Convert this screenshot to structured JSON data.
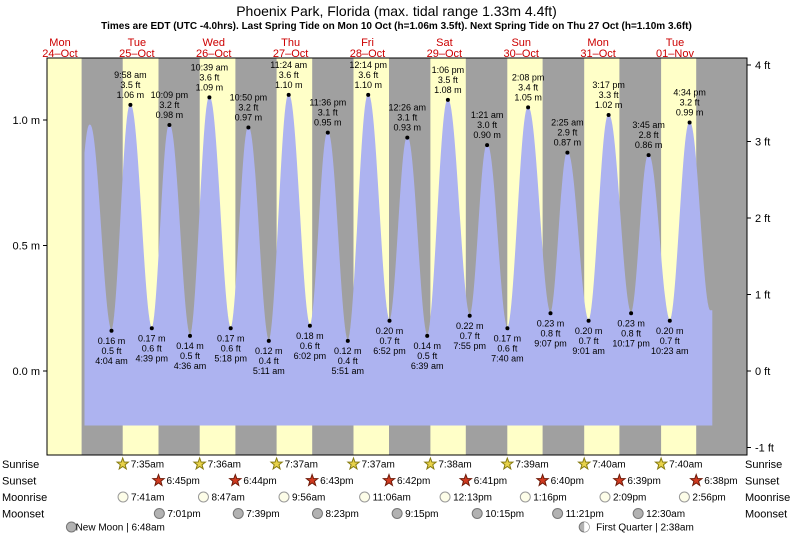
{
  "title": "Phoenix Park, Florida (max. tidal range 1.33m 4.4ft)",
  "subtitle": "Times are EDT (UTC -4.0hrs). Last Spring Tide on Mon 10 Oct (h=1.06m 3.5ft). Next Spring Tide on Thu 27 Oct (h=1.10m 3.6ft)",
  "colors": {
    "day_band": "#ffffc8",
    "night_band": "#a0a0a0",
    "tide_fill": "#adb3f0",
    "day_label": "#cc0000",
    "sunrise_star_fill": "#e8d24a",
    "sunrise_star_stroke": "#857a10",
    "sunset_star_fill": "#d03a20",
    "sunset_star_stroke": "#6e1a08",
    "moonrise_fill": "#fdfde8",
    "moonrise_stroke": "#999999",
    "moonset_fill": "#b2b2b2",
    "moonset_stroke": "#777777",
    "plot_border": "#000000"
  },
  "days": [
    {
      "name": "Mon",
      "date": "24–Oct"
    },
    {
      "name": "Tue",
      "date": "25–Oct"
    },
    {
      "name": "Wed",
      "date": "26–Oct"
    },
    {
      "name": "Thu",
      "date": "27–Oct"
    },
    {
      "name": "Fri",
      "date": "28–Oct"
    },
    {
      "name": "Sat",
      "date": "29–Oct"
    },
    {
      "name": "Sun",
      "date": "30–Oct"
    },
    {
      "name": "Mon",
      "date": "31–Oct"
    },
    {
      "name": "Tue",
      "date": "01–Nov"
    }
  ],
  "y_axis": {
    "left": [
      {
        "label": "1.0 m",
        "m": 1.0
      },
      {
        "label": "0.5 m",
        "m": 0.5
      },
      {
        "label": "0.0 m",
        "m": 0.0
      }
    ],
    "right": [
      {
        "label": "4 ft",
        "ft": 4
      },
      {
        "label": "3 ft",
        "ft": 3
      },
      {
        "label": "2 ft",
        "ft": 2
      },
      {
        "label": "1 ft",
        "ft": 1
      },
      {
        "label": "0 ft",
        "ft": 0
      },
      {
        "label": "-1 ft",
        "ft": -1
      }
    ]
  },
  "chart_data": {
    "type": "area",
    "title": "Tide height curve for Phoenix Park, Florida",
    "ylabel_left_unit": "m",
    "ylabel_right_unit": "ft",
    "ylim_m": [
      -0.33,
      1.25
    ],
    "x_unit": "hours since Mon 24 Oct 00:00",
    "extremes": [
      {
        "kind": "low",
        "hour": 15.2,
        "height_m": 0.2,
        "annotated": false
      },
      {
        "kind": "high",
        "hour": 21.3,
        "height_m": 0.98,
        "annotated": false
      },
      {
        "kind": "low",
        "hour": 28.067,
        "height_m": 0.16,
        "annotated": true,
        "time": "4:04 am",
        "ft_label": "0.5 ft",
        "m_label": "0.16 m"
      },
      {
        "kind": "high",
        "hour": 33.967,
        "height_m": 1.06,
        "annotated": true,
        "time": "9:58 am",
        "ft_label": "3.5 ft",
        "m_label": "1.06 m"
      },
      {
        "kind": "low",
        "hour": 40.65,
        "height_m": 0.17,
        "annotated": true,
        "time": "4:39 pm",
        "ft_label": "0.6 ft",
        "m_label": "0.17 m"
      },
      {
        "kind": "high",
        "hour": 46.15,
        "height_m": 0.98,
        "annotated": true,
        "time": "10:09 pm",
        "ft_label": "3.2 ft",
        "m_label": "0.98 m"
      },
      {
        "kind": "low",
        "hour": 52.6,
        "height_m": 0.14,
        "annotated": true,
        "time": "4:36 am",
        "ft_label": "0.5 ft",
        "m_label": "0.14 m"
      },
      {
        "kind": "high",
        "hour": 58.65,
        "height_m": 1.09,
        "annotated": true,
        "time": "10:39 am",
        "ft_label": "3.6 ft",
        "m_label": "1.09 m"
      },
      {
        "kind": "low",
        "hour": 65.3,
        "height_m": 0.17,
        "annotated": true,
        "time": "5:18 pm",
        "ft_label": "0.6 ft",
        "m_label": "0.17 m"
      },
      {
        "kind": "high",
        "hour": 70.833,
        "height_m": 0.97,
        "annotated": true,
        "time": "10:50 pm",
        "ft_label": "3.2 ft",
        "m_label": "0.97 m"
      },
      {
        "kind": "low",
        "hour": 77.183,
        "height_m": 0.12,
        "annotated": true,
        "time": "5:11 am",
        "ft_label": "0.4 ft",
        "m_label": "0.12 m"
      },
      {
        "kind": "high",
        "hour": 83.4,
        "height_m": 1.1,
        "annotated": true,
        "time": "11:24 am",
        "ft_label": "3.6 ft",
        "m_label": "1.10 m"
      },
      {
        "kind": "low",
        "hour": 90.033,
        "height_m": 0.18,
        "annotated": true,
        "time": "6:02 pm",
        "ft_label": "0.6 ft",
        "m_label": "0.18 m"
      },
      {
        "kind": "high",
        "hour": 95.6,
        "height_m": 0.95,
        "annotated": true,
        "time": "11:36 pm",
        "ft_label": "3.1 ft",
        "m_label": "0.95 m"
      },
      {
        "kind": "low",
        "hour": 101.85,
        "height_m": 0.12,
        "annotated": true,
        "time": "5:51 am",
        "ft_label": "0.4 ft",
        "m_label": "0.12 m"
      },
      {
        "kind": "high",
        "hour": 108.233,
        "height_m": 1.1,
        "annotated": true,
        "time": "12:14 pm",
        "ft_label": "3.6 ft",
        "m_label": "1.10 m"
      },
      {
        "kind": "low",
        "hour": 114.867,
        "height_m": 0.2,
        "annotated": true,
        "time": "6:52 pm",
        "ft_label": "0.7 ft",
        "m_label": "0.20 m"
      },
      {
        "kind": "high",
        "hour": 120.433,
        "height_m": 0.93,
        "annotated": true,
        "time": "12:26 am",
        "ft_label": "3.1 ft",
        "m_label": "0.93 m"
      },
      {
        "kind": "low",
        "hour": 126.65,
        "height_m": 0.14,
        "annotated": true,
        "time": "6:39 am",
        "ft_label": "0.5 ft",
        "m_label": "0.14 m"
      },
      {
        "kind": "high",
        "hour": 133.1,
        "height_m": 1.08,
        "annotated": true,
        "time": "1:06 pm",
        "ft_label": "3.5 ft",
        "m_label": "1.08 m"
      },
      {
        "kind": "low",
        "hour": 139.917,
        "height_m": 0.22,
        "annotated": true,
        "time": "7:55 pm",
        "ft_label": "0.7 ft",
        "m_label": "0.22 m"
      },
      {
        "kind": "high",
        "hour": 145.35,
        "height_m": 0.9,
        "annotated": true,
        "time": "1:21 am",
        "ft_label": "3.0 ft",
        "m_label": "0.90 m"
      },
      {
        "kind": "low",
        "hour": 151.667,
        "height_m": 0.17,
        "annotated": true,
        "time": "7:40 am",
        "ft_label": "0.6 ft",
        "m_label": "0.17 m"
      },
      {
        "kind": "high",
        "hour": 158.133,
        "height_m": 1.05,
        "annotated": true,
        "time": "2:08 pm",
        "ft_label": "3.4 ft",
        "m_label": "1.05 m"
      },
      {
        "kind": "low",
        "hour": 165.117,
        "height_m": 0.23,
        "annotated": true,
        "time": "9:07 pm",
        "ft_label": "0.8 ft",
        "m_label": "0.23 m"
      },
      {
        "kind": "high",
        "hour": 170.417,
        "height_m": 0.87,
        "annotated": true,
        "time": "2:25 am",
        "ft_label": "2.9 ft",
        "m_label": "0.87 m"
      },
      {
        "kind": "low",
        "hour": 177.017,
        "height_m": 0.2,
        "annotated": true,
        "time": "9:01 am",
        "ft_label": "0.7 ft",
        "m_label": "0.20 m"
      },
      {
        "kind": "high",
        "hour": 183.283,
        "height_m": 1.02,
        "annotated": true,
        "time": "3:17 pm",
        "ft_label": "3.3 ft",
        "m_label": "1.02 m"
      },
      {
        "kind": "low",
        "hour": 190.283,
        "height_m": 0.23,
        "annotated": true,
        "time": "10:17 pm",
        "ft_label": "0.8 ft",
        "m_label": "0.23 m"
      },
      {
        "kind": "high",
        "hour": 195.75,
        "height_m": 0.86,
        "annotated": true,
        "time": "3:45 am",
        "ft_label": "2.8 ft",
        "m_label": "0.86 m"
      },
      {
        "kind": "low",
        "hour": 202.383,
        "height_m": 0.2,
        "annotated": true,
        "time": "10:23 am",
        "ft_label": "0.7 ft",
        "m_label": "0.20 m"
      },
      {
        "kind": "high",
        "hour": 208.567,
        "height_m": 0.99,
        "annotated": true,
        "time": "4:34 pm",
        "ft_label": "3.2 ft",
        "m_label": "0.99 m"
      },
      {
        "kind": "low",
        "hour": 214.9,
        "height_m": 0.24,
        "annotated": false
      }
    ]
  },
  "astro_rows": [
    {
      "id": "sunrise",
      "label": "Sunrise",
      "icon": "sunrise-star",
      "events": [
        {
          "time": "7:35am",
          "hour": 31.583
        },
        {
          "time": "7:36am",
          "hour": 55.6
        },
        {
          "time": "7:37am",
          "hour": 79.617
        },
        {
          "time": "7:37am",
          "hour": 103.617
        },
        {
          "time": "7:38am",
          "hour": 127.633
        },
        {
          "time": "7:39am",
          "hour": 151.65
        },
        {
          "time": "7:40am",
          "hour": 175.667
        },
        {
          "time": "7:40am",
          "hour": 199.667
        }
      ]
    },
    {
      "id": "sunset",
      "label": "Sunset",
      "icon": "sunset-star",
      "events": [
        {
          "time": "6:45pm",
          "hour": 42.75
        },
        {
          "time": "6:44pm",
          "hour": 66.733
        },
        {
          "time": "6:43pm",
          "hour": 90.717
        },
        {
          "time": "6:42pm",
          "hour": 114.7
        },
        {
          "time": "6:41pm",
          "hour": 138.683
        },
        {
          "time": "6:40pm",
          "hour": 162.667
        },
        {
          "time": "6:39pm",
          "hour": 186.65
        },
        {
          "time": "6:38pm",
          "hour": 210.633
        }
      ]
    },
    {
      "id": "moonrise",
      "label": "Moonrise",
      "icon": "moonrise-circle",
      "events": [
        {
          "time": "7:41am",
          "hour": 31.683
        },
        {
          "time": "8:47am",
          "hour": 56.783
        },
        {
          "time": "9:56am",
          "hour": 81.933
        },
        {
          "time": "11:06am",
          "hour": 107.1
        },
        {
          "time": "12:13pm",
          "hour": 132.217
        },
        {
          "time": "1:16pm",
          "hour": 157.267
        },
        {
          "time": "2:09pm",
          "hour": 182.15
        },
        {
          "time": "2:56pm",
          "hour": 206.933
        }
      ]
    },
    {
      "id": "moonset",
      "label": "Moonset",
      "icon": "moonset-circle",
      "events": [
        {
          "time": "7:01pm",
          "hour": 43.017
        },
        {
          "time": "7:39pm",
          "hour": 67.65
        },
        {
          "time": "8:23pm",
          "hour": 92.383
        },
        {
          "time": "9:15pm",
          "hour": 117.25
        },
        {
          "time": "10:15pm",
          "hour": 142.25
        },
        {
          "time": "11:21pm",
          "hour": 167.35
        },
        {
          "time": "12:30am",
          "hour": 192.5
        }
      ]
    }
  ],
  "moon_phases": [
    {
      "name": "New Moon",
      "time": "6:48am",
      "label": "New Moon | 6:48am",
      "hour": 30.8,
      "icon": "new-moon"
    },
    {
      "name": "First Quarter",
      "time": "2:38am",
      "label": "First Quarter | 2:38am",
      "hour": 194.633,
      "icon": "first-quarter-moon"
    }
  ]
}
